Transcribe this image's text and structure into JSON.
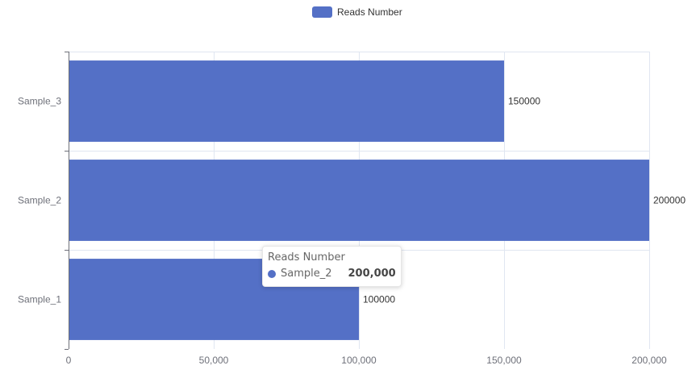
{
  "chart_data": {
    "type": "bar",
    "orientation": "horizontal",
    "categories": [
      "Sample_1",
      "Sample_2",
      "Sample_3"
    ],
    "series": [
      {
        "name": "Reads Number",
        "values": [
          100000,
          200000,
          150000
        ],
        "color": "#5470c6"
      }
    ],
    "x_ticks": [
      "0",
      "50,000",
      "100,000",
      "150,000",
      "200,000"
    ],
    "xlim": [
      0,
      200000
    ],
    "grid": true,
    "legend": "top-center",
    "data_labels": [
      "100000",
      "200000",
      "150000"
    ]
  },
  "tooltip": {
    "title": "Reads Number",
    "category": "Sample_2",
    "value": "200,000",
    "color": "#5470c6"
  }
}
